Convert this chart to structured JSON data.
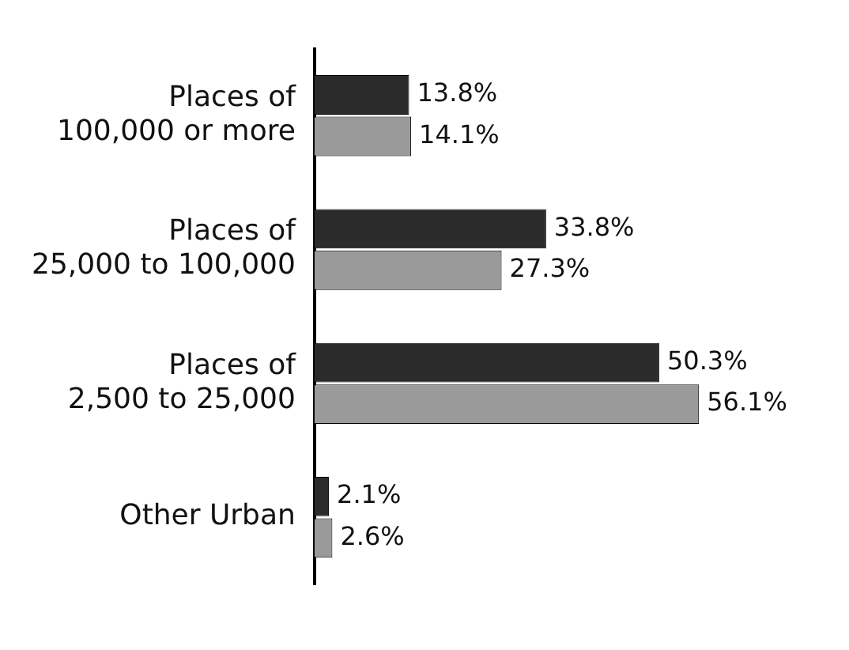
{
  "chart_data": {
    "type": "bar",
    "orientation": "horizontal",
    "categories": [
      "Places of\n100,000 or more",
      "Places of\n25,000 to 100,000",
      "Places of\n2,500 to 25,000",
      "Other Urban"
    ],
    "series": [
      {
        "color": "#2b2b2b",
        "values": [
          13.8,
          33.8,
          50.3,
          2.1
        ],
        "value_labels": [
          "13.8%",
          "33.8%",
          "50.3%",
          "2.1%"
        ]
      },
      {
        "color": "#9a9a9a",
        "values": [
          14.1,
          27.3,
          56.1,
          2.6
        ],
        "value_labels": [
          "14.1%",
          "27.3%",
          "56.1%",
          "2.6%"
        ]
      }
    ],
    "tick_labels": "y",
    "grid": false,
    "legend": false
  }
}
